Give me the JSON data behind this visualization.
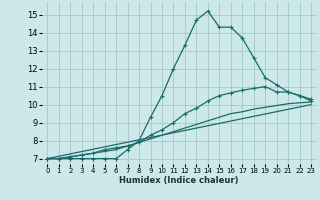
{
  "xlabel": "Humidex (Indice chaleur)",
  "background_color": "#cce8e8",
  "grid_color": "#aacccc",
  "line_color": "#1a6b6b",
  "xlim": [
    -0.5,
    23.5
  ],
  "ylim": [
    6.7,
    15.7
  ],
  "yticks": [
    7,
    8,
    9,
    10,
    11,
    12,
    13,
    14,
    15
  ],
  "xticks": [
    0,
    1,
    2,
    3,
    4,
    5,
    6,
    7,
    8,
    9,
    10,
    11,
    12,
    13,
    14,
    15,
    16,
    17,
    18,
    19,
    20,
    21,
    22,
    23
  ],
  "line1_x": [
    0,
    1,
    2,
    3,
    4,
    5,
    6,
    7,
    8,
    9,
    10,
    11,
    12,
    13,
    14,
    15,
    16,
    17,
    18,
    19,
    20,
    21,
    22,
    23
  ],
  "line1_y": [
    7.0,
    7.0,
    7.0,
    7.0,
    7.0,
    7.0,
    7.0,
    7.5,
    8.0,
    9.3,
    10.5,
    12.0,
    13.3,
    14.7,
    15.2,
    14.3,
    14.3,
    13.7,
    12.6,
    11.5,
    11.1,
    10.7,
    10.5,
    10.3
  ],
  "line2_x": [
    0,
    23
  ],
  "line2_y": [
    7.0,
    10.0
  ],
  "line3_x": [
    0,
    1,
    2,
    3,
    4,
    5,
    6,
    7,
    8,
    9,
    10,
    11,
    12,
    13,
    14,
    15,
    16,
    17,
    18,
    19,
    20,
    21,
    22,
    23
  ],
  "line3_y": [
    7.0,
    7.0,
    7.1,
    7.2,
    7.3,
    7.4,
    7.5,
    7.7,
    7.9,
    8.1,
    8.3,
    8.5,
    8.7,
    8.9,
    9.1,
    9.3,
    9.5,
    9.6,
    9.75,
    9.85,
    9.95,
    10.05,
    10.1,
    10.15
  ],
  "line4_x": [
    0,
    1,
    2,
    3,
    4,
    5,
    6,
    7,
    8,
    9,
    10,
    11,
    12,
    13,
    14,
    15,
    16,
    17,
    18,
    19,
    20,
    21,
    22,
    23
  ],
  "line4_y": [
    7.0,
    7.0,
    7.1,
    7.2,
    7.3,
    7.5,
    7.6,
    7.7,
    7.9,
    8.3,
    8.6,
    9.0,
    9.5,
    9.8,
    10.2,
    10.5,
    10.65,
    10.8,
    10.9,
    11.0,
    10.7,
    10.7,
    10.5,
    10.2
  ]
}
